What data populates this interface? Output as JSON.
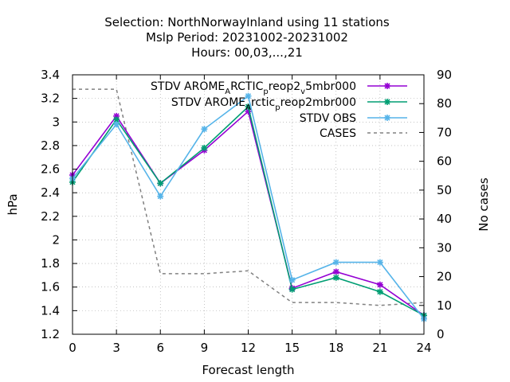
{
  "chart_data": {
    "type": "line",
    "title_lines": [
      "Selection: NorthNorwayInland using    11 stations",
      "Mslp   Period: 20231002-20231002",
      "Hours:  00,03,...,21"
    ],
    "xlabel": "Forecast length",
    "ylabel": "hPa",
    "y2label": "No cases",
    "x": [
      0,
      3,
      6,
      9,
      12,
      15,
      18,
      21,
      24
    ],
    "xlim": [
      0,
      24
    ],
    "ylim": [
      1.2,
      3.4
    ],
    "y2lim": [
      0,
      90
    ],
    "xticks": [
      "0",
      "3",
      "6",
      "9",
      "12",
      "15",
      "18",
      "21",
      "24"
    ],
    "yticks": [
      "1.2",
      "1.4",
      "1.6",
      "1.8",
      "2",
      "2.2",
      "2.4",
      "2.6",
      "2.8",
      "3",
      "3.2",
      "3.4"
    ],
    "y2ticks": [
      "0",
      "10",
      "20",
      "30",
      "40",
      "50",
      "60",
      "70",
      "80",
      "90"
    ],
    "grid": true,
    "legend_position": "top-right",
    "series": [
      {
        "name_parts": [
          "STDV AROME",
          "A",
          "RCTIC",
          "p",
          "reop2",
          "v",
          "5mbr000"
        ],
        "color": "#9400d3",
        "axis": "y",
        "style": "solid",
        "values": [
          2.55,
          3.05,
          2.48,
          2.76,
          3.09,
          1.59,
          1.73,
          1.62,
          1.36
        ]
      },
      {
        "name_parts": [
          "STDV AROME",
          "A",
          "rctic",
          "p",
          "reop2mbr000"
        ],
        "color": "#009e73",
        "axis": "y",
        "style": "solid",
        "values": [
          2.49,
          3.02,
          2.48,
          2.78,
          3.13,
          1.58,
          1.68,
          1.56,
          1.36
        ]
      },
      {
        "name": "STDV OBS",
        "color": "#56b4e9",
        "axis": "y",
        "style": "solid",
        "values": [
          2.52,
          2.98,
          2.37,
          2.94,
          3.22,
          1.66,
          1.81,
          1.81,
          1.33
        ]
      },
      {
        "name": "CASES",
        "color": "#808080",
        "axis": "y2",
        "style": "dashed",
        "values": [
          85,
          85,
          21,
          21,
          22,
          11,
          11,
          10,
          11
        ]
      }
    ]
  }
}
